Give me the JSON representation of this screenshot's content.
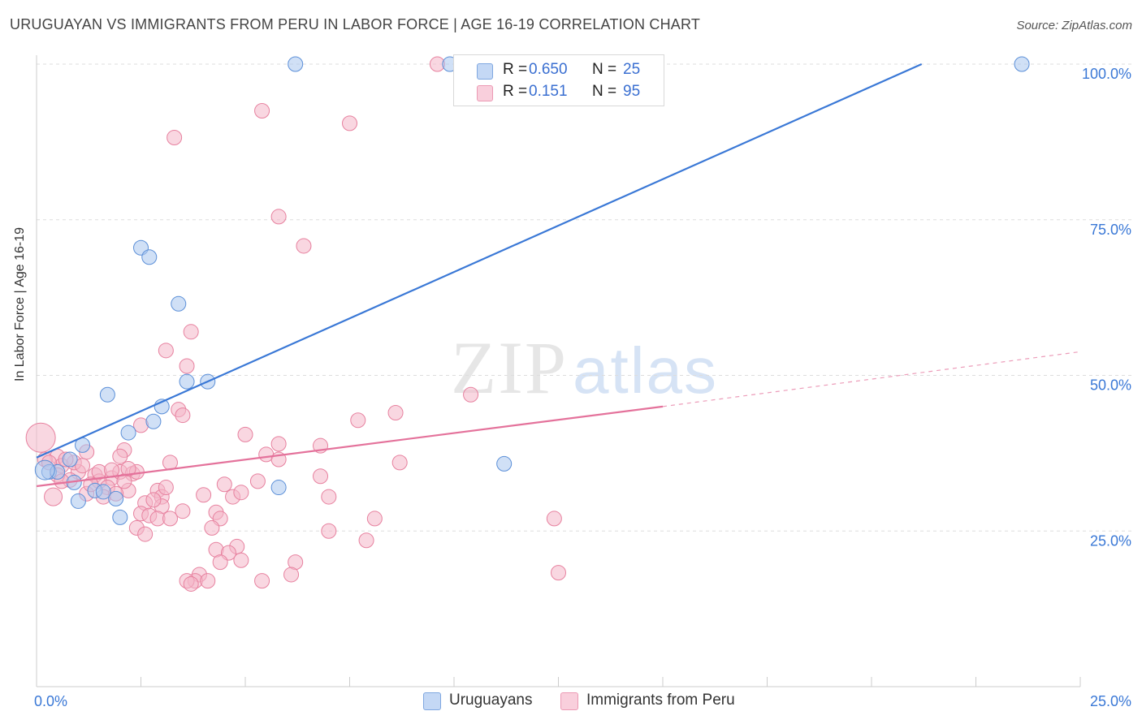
{
  "header": {
    "title": "URUGUAYAN VS IMMIGRANTS FROM PERU IN LABOR FORCE | AGE 16-19 CORRELATION CHART",
    "source": "Source: ZipAtlas.com"
  },
  "watermark": {
    "zip": "ZIP",
    "atlas": "atlas"
  },
  "legend_top": {
    "rows": [
      {
        "r_label": "R =",
        "r_value": "0.650",
        "n_label": "N =",
        "n_value": "25",
        "color": "#a9c6ef"
      },
      {
        "r_label": "R =",
        "r_value": "0.151",
        "n_label": "N =",
        "n_value": "95",
        "color": "#f4b6c8"
      }
    ]
  },
  "legend_bottom": {
    "items": [
      {
        "label": "Uruguayans",
        "color": "#a9c6ef"
      },
      {
        "label": "Immigrants from Peru",
        "color": "#f4b6c8"
      }
    ]
  },
  "chart_data": {
    "type": "scatter",
    "title": "URUGUAYAN VS IMMIGRANTS FROM PERU IN LABOR FORCE | AGE 16-19 CORRELATION CHART",
    "xlabel": "",
    "ylabel": "In Labor Force | Age 16-19",
    "xlim": [
      0,
      25
    ],
    "ylim": [
      0,
      100
    ],
    "x_tick_labels": [
      "0.0%",
      "25.0%"
    ],
    "y_tick_labels": [
      "25.0%",
      "50.0%",
      "75.0%",
      "100.0%"
    ],
    "y_ticks": [
      25,
      50,
      75,
      100
    ],
    "colors": {
      "blue": "#3a78d6",
      "pink": "#e4729b"
    },
    "series": [
      {
        "name": "Uruguayans",
        "color": "#a9c6ef",
        "stroke": "#5b8fd8",
        "trend": {
          "x0": 0,
          "y0": 36.8,
          "x1": 21.2,
          "y1": 100,
          "dashed_to": null
        },
        "points": [
          [
            6.2,
            100
          ],
          [
            9.9,
            100
          ],
          [
            23.6,
            100
          ],
          [
            2.5,
            70.5
          ],
          [
            2.7,
            69
          ],
          [
            3.4,
            61.5
          ],
          [
            3.6,
            49
          ],
          [
            4.1,
            49
          ],
          [
            1.7,
            46.9
          ],
          [
            3.0,
            45
          ],
          [
            2.8,
            42.6
          ],
          [
            2.2,
            40.8
          ],
          [
            1.1,
            38.8
          ],
          [
            0.8,
            36.5
          ],
          [
            11.2,
            35.8
          ],
          [
            0.3,
            34.5
          ],
          [
            0.5,
            34.5
          ],
          [
            1.4,
            31.5
          ],
          [
            0.9,
            32.8
          ],
          [
            1.9,
            30.2
          ],
          [
            1.0,
            29.8
          ],
          [
            5.8,
            32.0
          ],
          [
            1.6,
            31.3
          ],
          [
            2.0,
            27.2
          ],
          [
            0.2,
            34.8
          ]
        ]
      },
      {
        "name": "Immigrants from Peru",
        "color": "#f4b6c8",
        "stroke": "#e7819f",
        "trend": {
          "x0": 0,
          "y0": 32.2,
          "x1": 15.0,
          "y1": 45.0,
          "dashed_to": {
            "x": 25,
            "y": 53.8
          }
        },
        "points": [
          [
            9.6,
            100
          ],
          [
            5.4,
            92.5
          ],
          [
            7.5,
            90.5
          ],
          [
            3.3,
            88.2
          ],
          [
            5.8,
            75.5
          ],
          [
            6.4,
            70.8
          ],
          [
            3.7,
            57
          ],
          [
            3.1,
            54
          ],
          [
            3.6,
            51.5
          ],
          [
            10.4,
            46.9
          ],
          [
            3.4,
            44.5
          ],
          [
            3.5,
            43.6
          ],
          [
            8.6,
            44.0
          ],
          [
            7.7,
            42.8
          ],
          [
            2.5,
            42.0
          ],
          [
            5.0,
            40.5
          ],
          [
            5.8,
            39.0
          ],
          [
            6.8,
            38.7
          ],
          [
            2.1,
            38.0
          ],
          [
            1.2,
            37.7
          ],
          [
            5.5,
            37.3
          ],
          [
            5.8,
            36.5
          ],
          [
            8.7,
            36.0
          ],
          [
            3.2,
            36.0
          ],
          [
            0.5,
            37.0
          ],
          [
            0.2,
            36.5
          ],
          [
            0.1,
            40.0
          ],
          [
            0.6,
            35.5
          ],
          [
            1.0,
            34.5
          ],
          [
            1.4,
            34.0
          ],
          [
            1.8,
            33.5
          ],
          [
            2.0,
            34.5
          ],
          [
            2.3,
            34.2
          ],
          [
            0.8,
            33.2
          ],
          [
            1.5,
            33.0
          ],
          [
            1.7,
            32.0
          ],
          [
            2.2,
            31.5
          ],
          [
            1.2,
            31.0
          ],
          [
            1.6,
            30.5
          ],
          [
            2.6,
            29.5
          ],
          [
            2.9,
            31.5
          ],
          [
            3.0,
            30.5
          ],
          [
            3.0,
            29.0
          ],
          [
            0.4,
            30.5
          ],
          [
            4.0,
            30.8
          ],
          [
            4.7,
            30.5
          ],
          [
            4.9,
            31.2
          ],
          [
            4.5,
            32.5
          ],
          [
            5.3,
            33.0
          ],
          [
            6.8,
            33.8
          ],
          [
            7.0,
            30.5
          ],
          [
            3.5,
            28.2
          ],
          [
            2.5,
            27.8
          ],
          [
            2.7,
            27.5
          ],
          [
            2.9,
            27.0
          ],
          [
            3.2,
            27.0
          ],
          [
            4.3,
            28.0
          ],
          [
            4.4,
            27.0
          ],
          [
            8.1,
            27.0
          ],
          [
            12.4,
            27.0
          ],
          [
            2.4,
            25.5
          ],
          [
            2.6,
            24.5
          ],
          [
            4.2,
            25.5
          ],
          [
            7.0,
            25.0
          ],
          [
            7.9,
            23.5
          ],
          [
            4.3,
            22.0
          ],
          [
            4.8,
            22.5
          ],
          [
            4.6,
            21.5
          ],
          [
            4.4,
            20.0
          ],
          [
            4.9,
            20.3
          ],
          [
            6.2,
            20.0
          ],
          [
            6.1,
            18.0
          ],
          [
            12.5,
            18.3
          ],
          [
            3.9,
            18.0
          ],
          [
            3.8,
            17.0
          ],
          [
            4.1,
            17.0
          ],
          [
            3.6,
            17.0
          ],
          [
            3.7,
            16.5
          ],
          [
            5.4,
            17.0
          ],
          [
            1.5,
            34.5
          ],
          [
            2.1,
            33.0
          ],
          [
            2.4,
            34.5
          ],
          [
            0.9,
            36.0
          ],
          [
            1.3,
            32.5
          ],
          [
            1.9,
            31.0
          ],
          [
            2.2,
            35.0
          ],
          [
            2.8,
            30.0
          ],
          [
            3.1,
            32.0
          ],
          [
            0.3,
            36.0
          ],
          [
            0.7,
            36.5
          ],
          [
            1.1,
            35.5
          ],
          [
            0.5,
            34.0
          ],
          [
            2.0,
            37.0
          ],
          [
            1.8,
            34.8
          ],
          [
            0.6,
            33.0
          ]
        ]
      }
    ]
  }
}
